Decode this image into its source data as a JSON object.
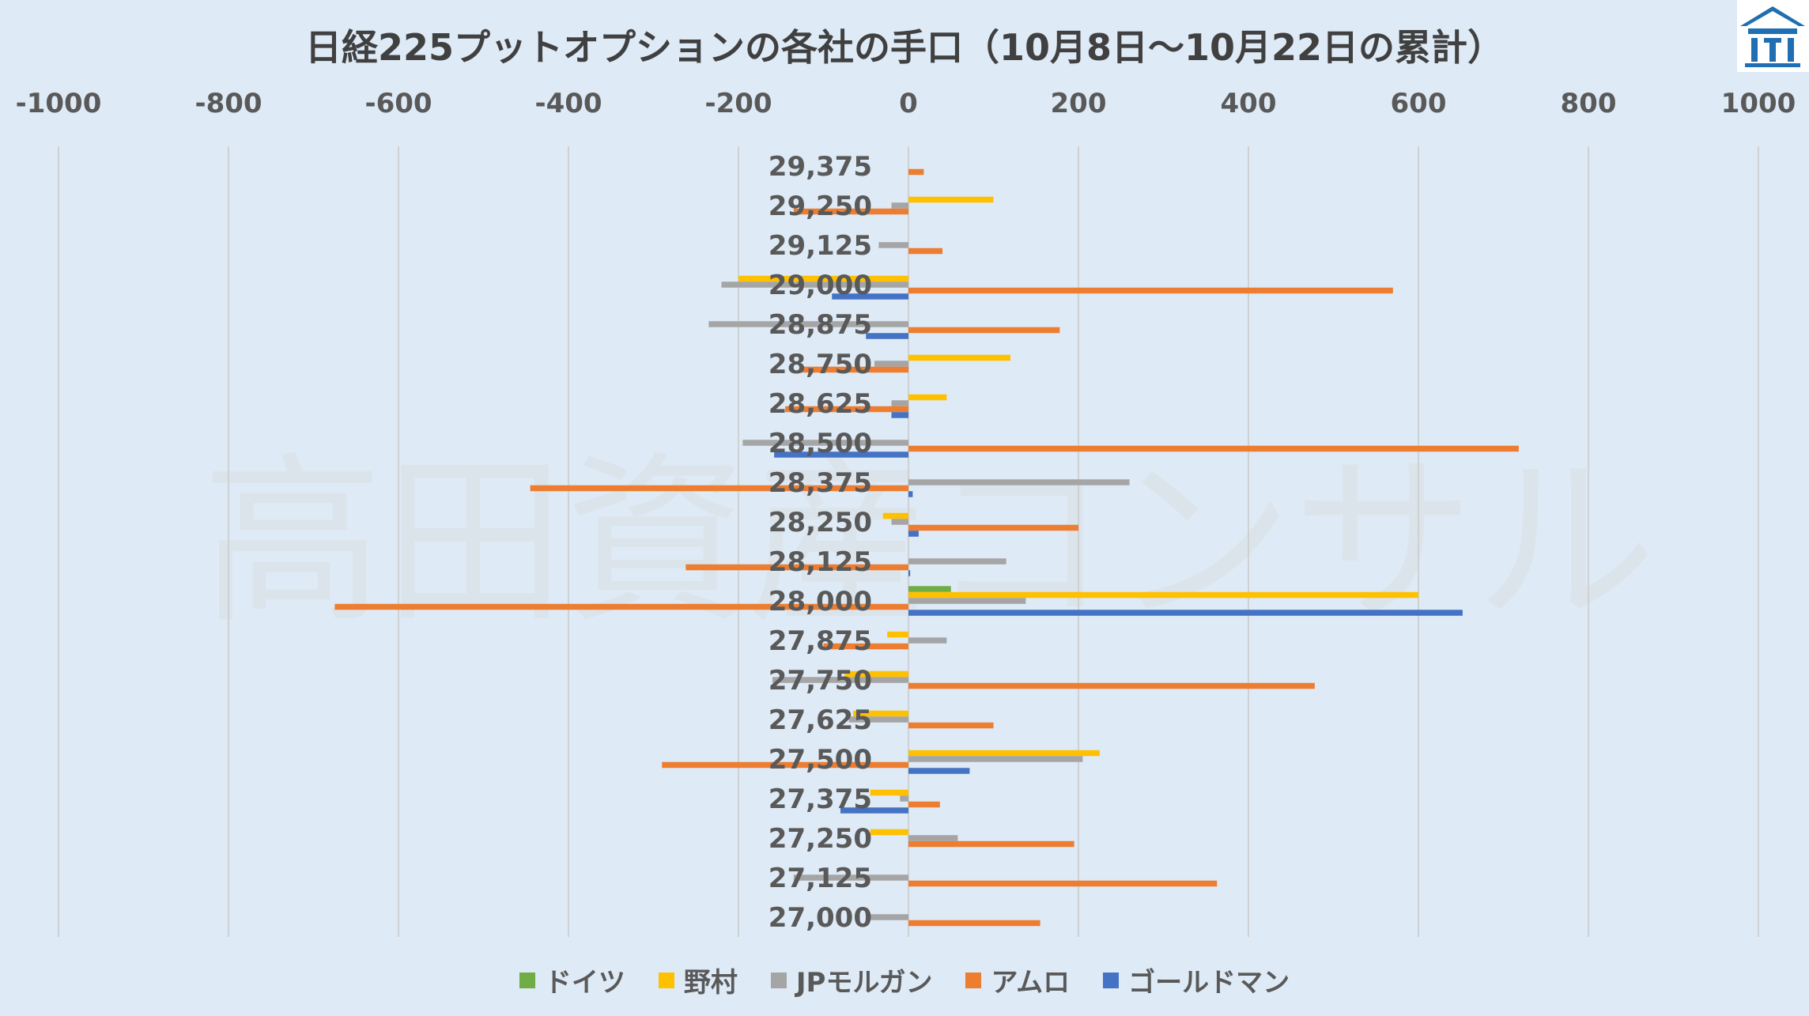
{
  "title": "日経225プットオプションの各社の手口（10月8日～10月22日の累計）",
  "watermark": "高田資産コンサル",
  "chart_data": {
    "type": "bar",
    "orientation": "horizontal",
    "title": "日経225プットオプションの各社の手口（10月8日～10月22日の累計）",
    "xlim": [
      -1000,
      1000
    ],
    "x_ticks": [
      "-1000",
      "-800",
      "-600",
      "-400",
      "-200",
      "0",
      "200",
      "400",
      "600",
      "800",
      "1000"
    ],
    "x_tick_values": [
      -1000,
      -800,
      -600,
      -400,
      -200,
      0,
      200,
      400,
      600,
      800,
      1000
    ],
    "grid": true,
    "legend_position": "bottom",
    "categories": [
      "29,375",
      "29,250",
      "29,125",
      "29,000",
      "28,875",
      "28,750",
      "28,625",
      "28,500",
      "28,375",
      "28,250",
      "28,125",
      "28,000",
      "27,875",
      "27,750",
      "27,625",
      "27,500",
      "27,375",
      "27,250",
      "27,125",
      "27,000"
    ],
    "series": [
      {
        "name": "ドイツ",
        "color": "#70ad47",
        "values": [
          0,
          0,
          0,
          0,
          0,
          0,
          0,
          0,
          0,
          0,
          0,
          50,
          0,
          0,
          0,
          0,
          0,
          0,
          0,
          0
        ]
      },
      {
        "name": "野村",
        "color": "#ffc000",
        "values": [
          0,
          100,
          0,
          -200,
          0,
          120,
          45,
          0,
          0,
          -30,
          0,
          600,
          -25,
          -75,
          -65,
          225,
          -45,
          -45,
          0,
          0
        ]
      },
      {
        "name": "JPモルガン",
        "color": "#a5a5a5",
        "values": [
          0,
          -20,
          -35,
          -220,
          -235,
          -40,
          -20,
          -195,
          260,
          -20,
          115,
          138,
          45,
          -160,
          -70,
          205,
          -10,
          58,
          -135,
          -45
        ]
      },
      {
        "name": "アムロ",
        "color": "#ed7d31",
        "values": [
          18,
          -135,
          40,
          570,
          178,
          -125,
          -145,
          718,
          -445,
          200,
          -262,
          -675,
          -100,
          478,
          100,
          -290,
          37,
          195,
          363,
          155
        ]
      },
      {
        "name": "ゴールドマン",
        "color": "#4472c4",
        "values": [
          0,
          0,
          0,
          -90,
          -50,
          0,
          -20,
          -158,
          5,
          12,
          2,
          652,
          0,
          0,
          0,
          72,
          -80,
          0,
          0,
          0
        ]
      }
    ]
  }
}
